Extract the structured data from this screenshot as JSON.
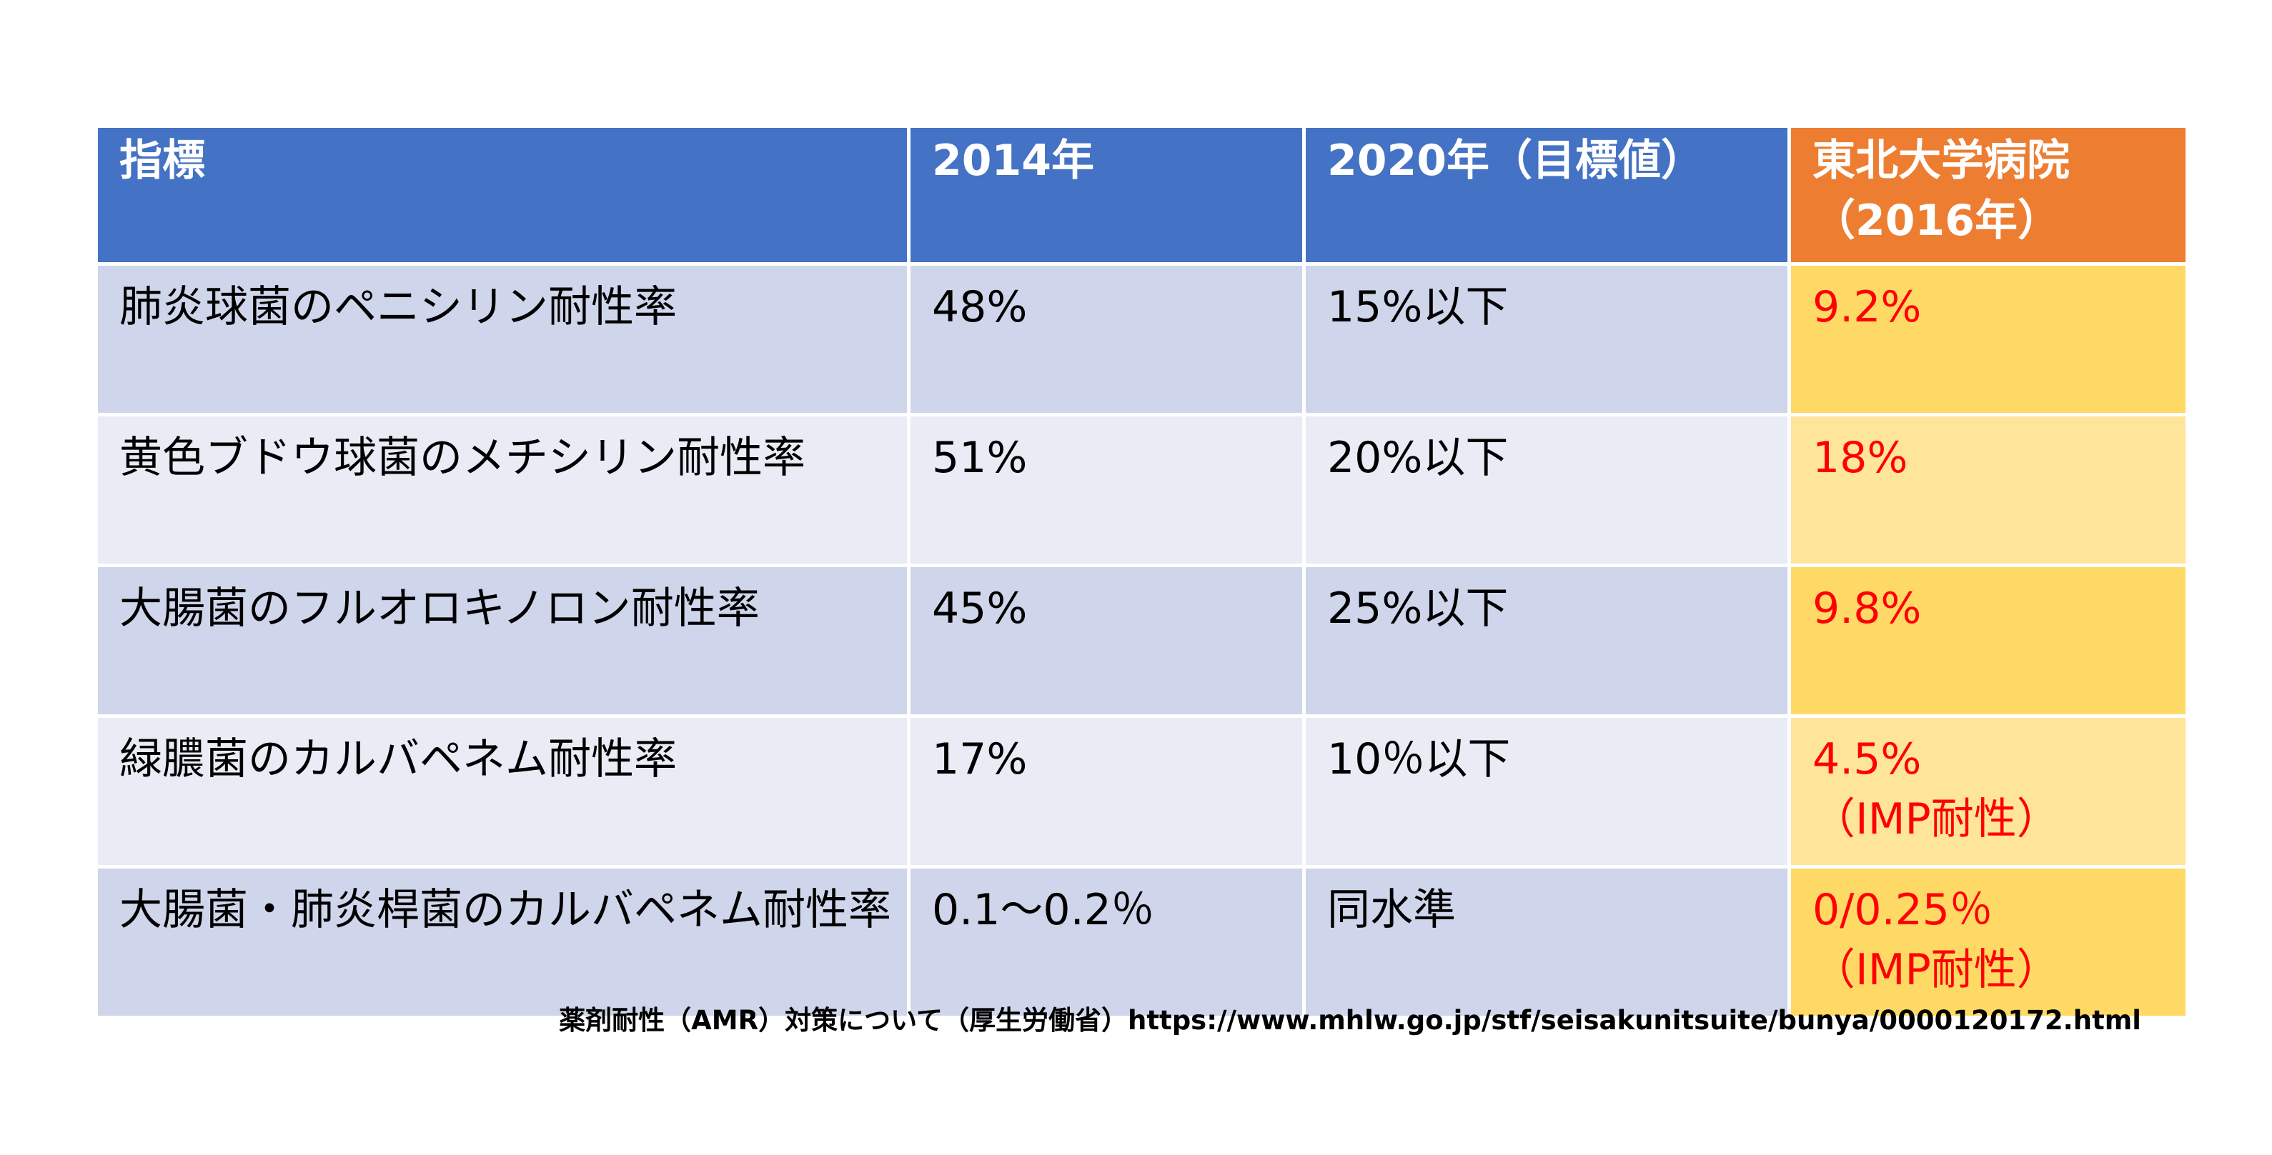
{
  "table": {
    "headers": {
      "indicator": "指標",
      "y2014": "2014年",
      "y2020": "2020年（目標値）",
      "hospital_line1": "東北大学病院",
      "hospital_line2": "（2016年）"
    },
    "rows": [
      {
        "indicator": "肺炎球菌のペニシリン耐性率",
        "y2014": "48%",
        "y2020": "15%以下",
        "hospital_line1": "9.2%",
        "hospital_line2": ""
      },
      {
        "indicator": "黄色ブドウ球菌のメチシリン耐性率",
        "y2014": "51%",
        "y2020": "20%以下",
        "hospital_line1": "18%",
        "hospital_line2": ""
      },
      {
        "indicator": "大腸菌のフルオロキノロン耐性率",
        "y2014": "45%",
        "y2020": "25%以下",
        "hospital_line1": "9.8%",
        "hospital_line2": ""
      },
      {
        "indicator": "緑膿菌のカルバペネム耐性率",
        "y2014": "17%",
        "y2020": "10％以下",
        "hospital_line1": "4.5%",
        "hospital_line2": "（IMP耐性）"
      },
      {
        "indicator": "大腸菌・肺炎桿菌のカルバペネム耐性率",
        "y2014": "0.1～0.2％",
        "y2020": "同水準",
        "hospital_line1": "0/0.25％",
        "hospital_line2": "（IMP耐性）"
      }
    ]
  },
  "source": "薬剤耐性（AMR）対策について（厚生労働省）https://www.mhlw.go.jp/stf/seisakunitsuite/bunya/0000120172.html",
  "colors": {
    "header_blue": "#4472c4",
    "header_orange": "#ed7d31",
    "row_odd": "#cfd5ea",
    "row_even": "#e9ebf5",
    "highlight_odd": "#ffd966",
    "highlight_even": "#ffe599",
    "highlight_text": "#ff0000"
  }
}
